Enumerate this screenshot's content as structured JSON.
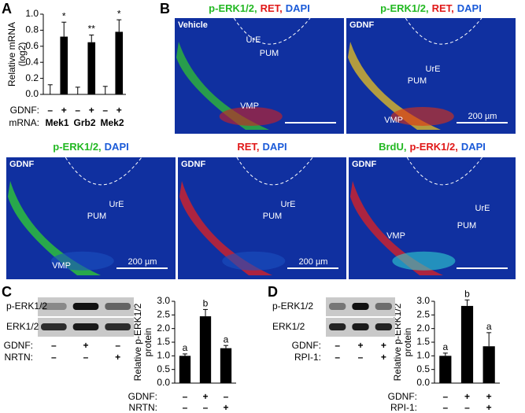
{
  "panel_labels": [
    "A",
    "B",
    "C",
    "D"
  ],
  "chart_data": [
    {
      "type": "bar",
      "ylabel": [
        "Relative mRNA",
        "(log2)"
      ],
      "ylim": [
        0,
        1
      ],
      "yticks": [
        {
          "value": 0,
          "label": "0.0"
        },
        0.2,
        0.4,
        0.6,
        0.8,
        {
          "value": 1,
          "label": "1.0"
        }
      ],
      "color": "#000000",
      "values": [
        0,
        0.72,
        0,
        0.65,
        0,
        0.78
      ],
      "errors": [
        0.12,
        0.18,
        0.09,
        0.09,
        0.1,
        0.15
      ],
      "annotations": [
        null,
        "*",
        null,
        "**",
        null,
        "*"
      ],
      "condition_rows": [
        {
          "name": "GDNF:",
          "labels": [
            "–",
            "+",
            "–",
            "+",
            "–",
            "+"
          ]
        },
        {
          "name": "mRNA:",
          "labels": [
            "Mek1",
            "Grb2",
            "Mek2"
          ]
        }
      ]
    },
    {
      "type": "bar",
      "ylabel": [
        "Relative p-ERK1/2",
        "protein"
      ],
      "ylim": [
        0,
        3
      ],
      "yticks": [
        {
          "value": 0,
          "label": "0.0"
        },
        0.5,
        {
          "value": 1,
          "label": "1.0"
        },
        1.5,
        {
          "value": 2,
          "label": "2.0"
        },
        2.5,
        {
          "value": 3,
          "label": "3.0"
        }
      ],
      "color": "#000000",
      "values": [
        1.0,
        2.45,
        1.28
      ],
      "errors": [
        0.07,
        0.25,
        0.1
      ],
      "annotations": [
        "a",
        "b",
        "a"
      ],
      "condition_rows": [
        {
          "name": "GDNF:",
          "labels": [
            "–",
            "+",
            "–"
          ]
        },
        {
          "name": "NRTN:",
          "labels": [
            "–",
            "–",
            "+"
          ]
        }
      ]
    },
    {
      "type": "bar",
      "ylabel": [
        "Relative p-ERK1/2",
        "protein"
      ],
      "ylim": [
        0,
        3
      ],
      "yticks": [
        {
          "value": 0,
          "label": "0.0"
        },
        0.5,
        {
          "value": 1,
          "label": "1.0"
        },
        1.5,
        {
          "value": 2,
          "label": "2.0"
        },
        2.5,
        {
          "value": 3,
          "label": "3.0"
        }
      ],
      "color": "#000000",
      "values": [
        1.0,
        2.83,
        1.35
      ],
      "errors": [
        0.1,
        0.22,
        0.5
      ],
      "annotations": [
        "a",
        "b",
        "a"
      ],
      "condition_rows": [
        {
          "name": "GDNF:",
          "labels": [
            "–",
            "+",
            "+"
          ]
        },
        {
          "name": "RPI-1:",
          "labels": [
            "–",
            "–",
            "+"
          ]
        }
      ]
    }
  ],
  "blots": [
    {
      "row_labels": [
        "p-ERK1/2",
        "ERK1/2"
      ],
      "condition_rows": [
        {
          "name": "GDNF:",
          "labels": [
            "–",
            "+",
            "–"
          ]
        },
        {
          "name": "NRTN:",
          "labels": [
            "–",
            "–",
            "+"
          ]
        }
      ]
    },
    {
      "row_labels": [
        "p-ERK1/2",
        "ERK1/2"
      ],
      "condition_rows": [
        {
          "name": "GDNF:",
          "labels": [
            "–",
            "+",
            "+"
          ]
        },
        {
          "name": "RPI-1:",
          "labels": [
            "–",
            "–",
            "+"
          ]
        }
      ]
    }
  ],
  "micrographs": [
    {
      "title": [
        {
          "text": "p-ERK1/2,",
          "color": "#22b822"
        },
        {
          "text": "RET,",
          "color": "#e01818"
        },
        {
          "text": "DAPI",
          "color": "#1a5ad8"
        }
      ],
      "corner": "Vehicle",
      "regions": [
        "UrE",
        "PUM",
        "VMP"
      ]
    },
    {
      "title": [
        {
          "text": "p-ERK1/2,",
          "color": "#22b822"
        },
        {
          "text": "RET,",
          "color": "#e01818"
        },
        {
          "text": "DAPI",
          "color": "#1a5ad8"
        }
      ],
      "corner": "GDNF",
      "regions": [
        "UrE",
        "PUM",
        "VMP"
      ],
      "scale": "200 µm"
    },
    {
      "title": [
        {
          "text": "p-ERK1/2,",
          "color": "#22b822"
        },
        {
          "text": "DAPI",
          "color": "#1a5ad8"
        }
      ],
      "corner": "GDNF",
      "regions": [
        "UrE",
        "PUM",
        "VMP"
      ],
      "scale": "200 µm"
    },
    {
      "title": [
        {
          "text": "RET,",
          "color": "#e01818"
        },
        {
          "text": "DAPI",
          "color": "#1a5ad8"
        }
      ],
      "corner": "GDNF",
      "regions": [
        "UrE",
        "PUM"
      ],
      "scale": "200 µm"
    },
    {
      "title": [
        {
          "text": "BrdU,",
          "color": "#22b822"
        },
        {
          "text": "p-ERK1/2,",
          "color": "#e01818"
        },
        {
          "text": "DAPI",
          "color": "#1a5ad8"
        }
      ],
      "corner": "GDNF",
      "regions": [
        "UrE",
        "PUM",
        "VMP"
      ]
    }
  ]
}
